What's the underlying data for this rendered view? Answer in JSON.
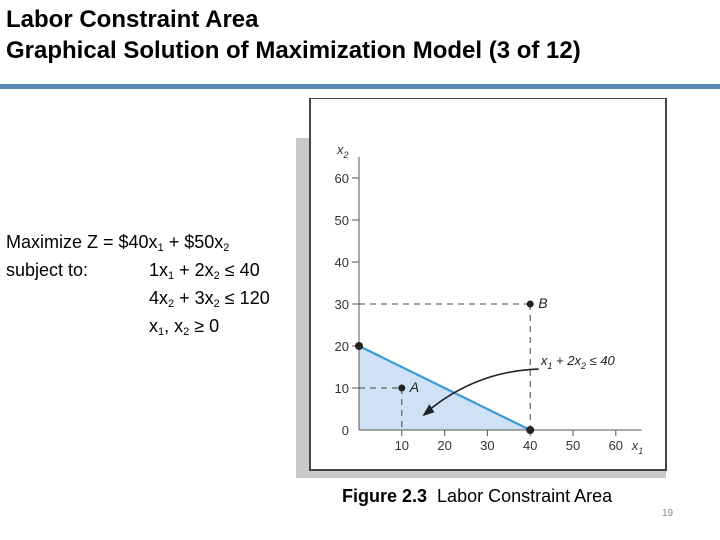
{
  "slide": {
    "title_line1": "Labor Constraint Area",
    "title_line2": "Graphical Solution of Maximization Model (3 of 12)",
    "page_number": "19",
    "accent_color": "#5b87b5"
  },
  "model": {
    "objective": {
      "prefix": "Maximize Z = $40x",
      "s1": "1",
      "mid": " + $50x",
      "s2": "2"
    },
    "subject_to": "subject to:",
    "c1": {
      "a": "1x",
      "s1": "1",
      "b": " + 2x",
      "s2": "2",
      "c": " ≤ 40"
    },
    "c2": {
      "a": "4x",
      "s1": "2",
      "b": " + 3x",
      "s2": "2",
      "c": " ≤ 120"
    },
    "c3": {
      "a": "x",
      "s1": "1",
      "b": ", x",
      "s2": "2",
      "c": " ≥ 0"
    }
  },
  "caption": {
    "figure": "Figure 2.3",
    "text": "Labor Constraint Area"
  },
  "chart_data": {
    "type": "area",
    "xlim": [
      0,
      60
    ],
    "ylim": [
      0,
      60
    ],
    "xticks": [
      "10",
      "20",
      "30",
      "40",
      "50",
      "60"
    ],
    "yticks": [
      "0",
      "10",
      "20",
      "30",
      "40",
      "50",
      "60"
    ],
    "xlabel": {
      "base": "x",
      "sub": "1"
    },
    "ylabel": {
      "base": "x",
      "sub": "2"
    },
    "constraint_line": {
      "x": [
        0,
        40
      ],
      "y": [
        20,
        0
      ]
    },
    "constraint_label": {
      "a": "x",
      "s1": "1",
      "b": " + 2x",
      "s2": "2",
      "c": " ≤ 40"
    },
    "points": [
      {
        "name": "A",
        "x": 10,
        "y": 10
      },
      {
        "name": "B",
        "x": 40,
        "y": 30
      }
    ],
    "fill_color": "#cfe2f5",
    "line_color": "#3d9ad6",
    "grid": false
  }
}
